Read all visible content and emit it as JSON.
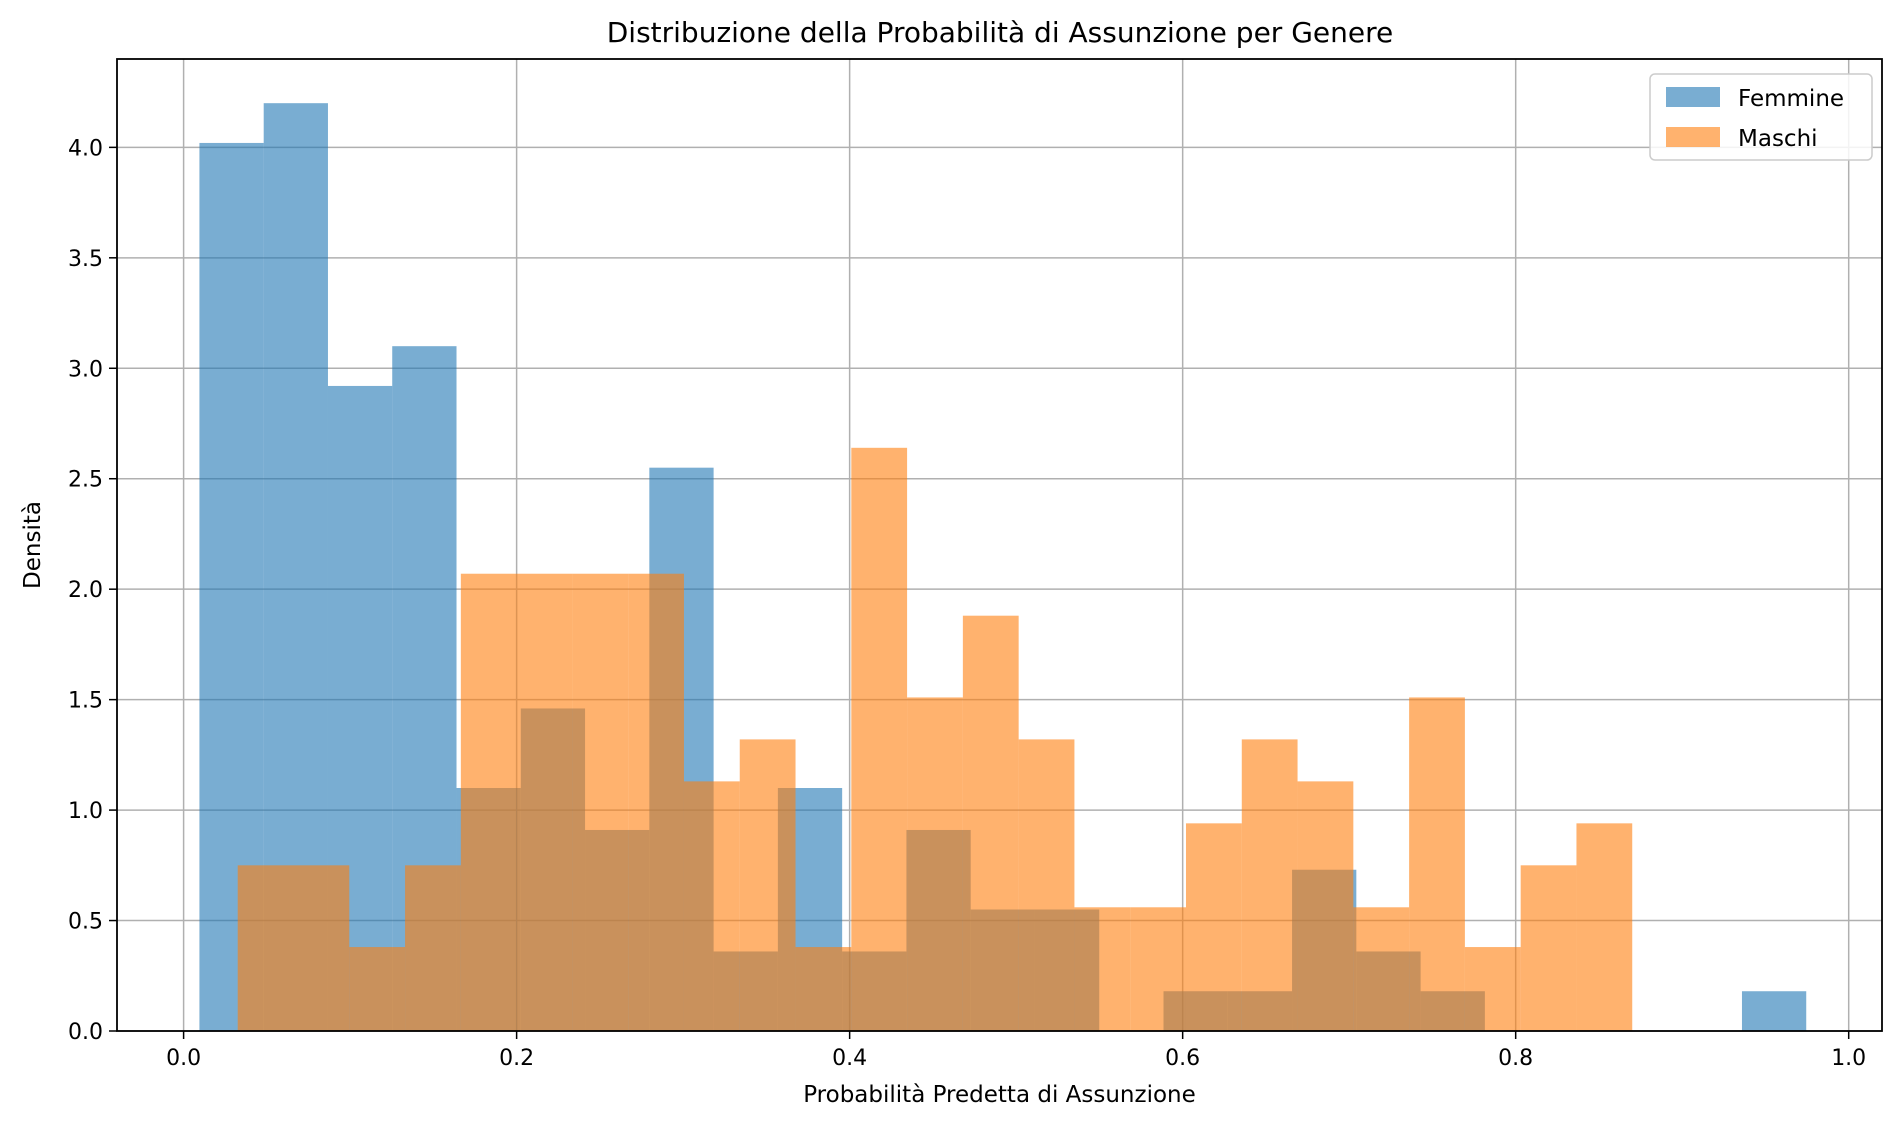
{
  "chart_data": {
    "type": "bar",
    "title": "Distribuzione della Probabilità di Assunzione per Genere",
    "xlabel": "Probabilità Predetta di Assunzione",
    "ylabel": "Densità",
    "xlim": [
      -0.04,
      1.02
    ],
    "ylim": [
      0,
      4.4
    ],
    "xticks": [
      0.0,
      0.2,
      0.4,
      0.6,
      0.8,
      1.0
    ],
    "xtick_labels": [
      "0.0",
      "0.2",
      "0.4",
      "0.6",
      "0.8",
      "1.0"
    ],
    "yticks": [
      0.0,
      0.5,
      1.0,
      1.5,
      2.0,
      2.5,
      3.0,
      3.5,
      4.0
    ],
    "ytick_labels": [
      "0.0",
      "0.5",
      "1.0",
      "1.5",
      "2.0",
      "2.5",
      "3.0",
      "3.5",
      "4.0"
    ],
    "grid": true,
    "legend_position": "top-right",
    "series": [
      {
        "name": "Femmine",
        "color": "#1f77b4",
        "opacity": 0.6,
        "bins": [
          [
            0.0095,
            0.0481,
            4.02
          ],
          [
            0.0481,
            0.0867,
            4.2
          ],
          [
            0.0867,
            0.1253,
            2.92
          ],
          [
            0.1253,
            0.1639,
            3.1
          ],
          [
            0.1639,
            0.2025,
            1.1
          ],
          [
            0.2025,
            0.2411,
            1.46
          ],
          [
            0.2411,
            0.2797,
            0.91
          ],
          [
            0.2797,
            0.3183,
            2.55
          ],
          [
            0.3183,
            0.3569,
            0.36
          ],
          [
            0.3569,
            0.3955,
            1.1
          ],
          [
            0.3955,
            0.4341,
            0.36
          ],
          [
            0.4341,
            0.4727,
            0.91
          ],
          [
            0.4727,
            0.5113,
            0.55
          ],
          [
            0.5113,
            0.5499,
            0.55
          ],
          [
            0.5499,
            0.5885,
            0.0
          ],
          [
            0.5885,
            0.6271,
            0.18
          ],
          [
            0.6271,
            0.6657,
            0.18
          ],
          [
            0.6657,
            0.7043,
            0.73
          ],
          [
            0.7043,
            0.7429,
            0.36
          ],
          [
            0.7429,
            0.7815,
            0.18
          ],
          [
            0.7815,
            0.8201,
            0.0
          ],
          [
            0.8201,
            0.8587,
            0.0
          ],
          [
            0.8587,
            0.8973,
            0.0
          ],
          [
            0.8973,
            0.9359,
            0.0
          ],
          [
            0.9359,
            0.9745,
            0.18
          ]
        ]
      },
      {
        "name": "Maschi",
        "color": "#ff7f0e",
        "opacity": 0.6,
        "bins": [
          [
            0.0325,
            0.066,
            0.75
          ],
          [
            0.066,
            0.0995,
            0.75
          ],
          [
            0.0995,
            0.133,
            0.38
          ],
          [
            0.133,
            0.1665,
            0.75
          ],
          [
            0.1665,
            0.2,
            2.07
          ],
          [
            0.2,
            0.2335,
            2.07
          ],
          [
            0.2335,
            0.267,
            2.07
          ],
          [
            0.267,
            0.3005,
            2.07
          ],
          [
            0.3005,
            0.334,
            1.13
          ],
          [
            0.334,
            0.3675,
            1.32
          ],
          [
            0.3675,
            0.401,
            0.38
          ],
          [
            0.401,
            0.4345,
            2.64
          ],
          [
            0.4345,
            0.468,
            1.51
          ],
          [
            0.468,
            0.5015,
            1.88
          ],
          [
            0.5015,
            0.535,
            1.32
          ],
          [
            0.535,
            0.5685,
            0.56
          ],
          [
            0.5685,
            0.602,
            0.56
          ],
          [
            0.602,
            0.6355,
            0.94
          ],
          [
            0.6355,
            0.669,
            1.32
          ],
          [
            0.669,
            0.7025,
            1.13
          ],
          [
            0.7025,
            0.736,
            0.56
          ],
          [
            0.736,
            0.7695,
            1.51
          ],
          [
            0.7695,
            0.803,
            0.38
          ],
          [
            0.803,
            0.8365,
            0.75
          ],
          [
            0.8365,
            0.87,
            0.94
          ]
        ]
      }
    ]
  }
}
